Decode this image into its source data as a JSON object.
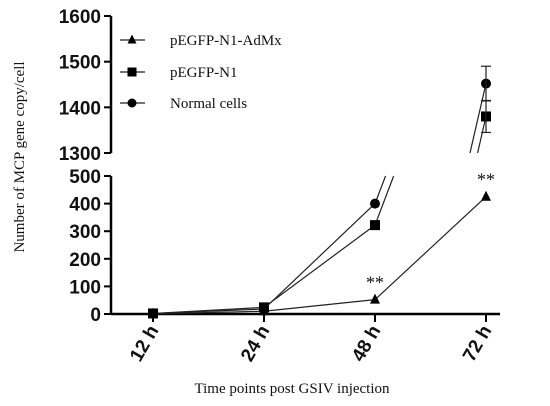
{
  "chart_data": {
    "type": "line",
    "xlabel": "Time points post GSIV injection",
    "ylabel": "Number of MCP gene copy/cell",
    "categories": [
      "12 h",
      "24 h",
      "48 h",
      "72 h"
    ],
    "y_axis_segments": [
      {
        "range": [
          0,
          500
        ],
        "ticks": [
          "0",
          "100",
          "200",
          "300",
          "400",
          "500"
        ]
      },
      {
        "range": [
          1300,
          1600
        ],
        "ticks": [
          "1300",
          "1400",
          "1500",
          "1600"
        ]
      }
    ],
    "series": [
      {
        "name": "pEGFP-N1-AdMx",
        "marker": "triangle",
        "values": [
          1,
          10,
          52,
          425
        ]
      },
      {
        "name": "pEGFP-N1",
        "marker": "square",
        "values": [
          2,
          24,
          322,
          1380
        ],
        "error_last": 35
      },
      {
        "name": "Normal cells",
        "marker": "circle",
        "values": [
          2,
          18,
          400,
          1452
        ],
        "error_last": 38
      }
    ],
    "annotations": [
      {
        "text": "**",
        "category": "48 h",
        "value": 52
      },
      {
        "text": "**",
        "category": "72 h",
        "value": 425
      }
    ],
    "legend_position": "top-left",
    "grid": false
  }
}
